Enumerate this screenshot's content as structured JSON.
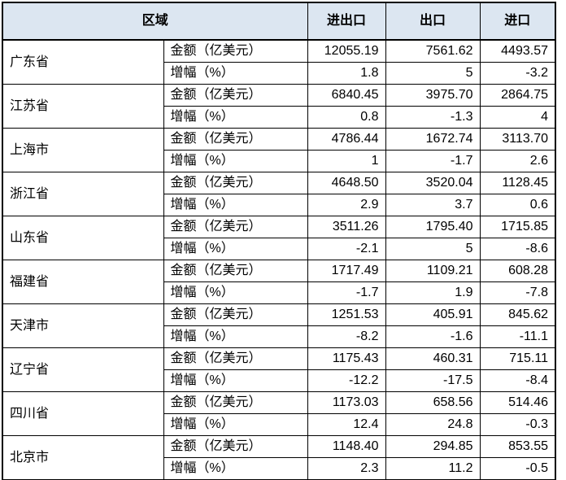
{
  "chart_data": {
    "type": "table",
    "header": {
      "region": "区域",
      "import_export": "进出口",
      "export": "出口",
      "import": "进口"
    },
    "metric_labels": {
      "amount": "金额（亿美元）",
      "growth": "增幅（%）"
    },
    "rows": [
      {
        "province": "广东省",
        "amount": [
          "12055.19",
          "7561.62",
          "4493.57"
        ],
        "growth": [
          "1.8",
          "5",
          "-3.2"
        ]
      },
      {
        "province": "江苏省",
        "amount": [
          "6840.45",
          "3975.70",
          "2864.75"
        ],
        "growth": [
          "0.8",
          "-1.3",
          "4"
        ]
      },
      {
        "province": "上海市",
        "amount": [
          "4786.44",
          "1672.74",
          "3113.70"
        ],
        "growth": [
          "1",
          "-1.7",
          "2.6"
        ]
      },
      {
        "province": "浙江省",
        "amount": [
          "4648.50",
          "3520.04",
          "1128.45"
        ],
        "growth": [
          "2.9",
          "3.7",
          "0.6"
        ]
      },
      {
        "province": "山东省",
        "amount": [
          "3511.26",
          "1795.40",
          "1715.85"
        ],
        "growth": [
          "-2.1",
          "5",
          "-8.6"
        ]
      },
      {
        "province": "福建省",
        "amount": [
          "1717.49",
          "1109.21",
          "608.28"
        ],
        "growth": [
          "-1.7",
          "1.9",
          "-7.8"
        ]
      },
      {
        "province": "天津市",
        "amount": [
          "1251.53",
          "405.91",
          "845.62"
        ],
        "growth": [
          "-8.2",
          "-1.6",
          "-11.1"
        ]
      },
      {
        "province": "辽宁省",
        "amount": [
          "1175.43",
          "460.31",
          "715.11"
        ],
        "growth": [
          "-12.2",
          "-17.5",
          "-8.4"
        ]
      },
      {
        "province": "四川省",
        "amount": [
          "1173.03",
          "658.56",
          "514.46"
        ],
        "growth": [
          "12.4",
          "24.8",
          "-0.3"
        ]
      },
      {
        "province": "北京市",
        "amount": [
          "1148.40",
          "294.85",
          "853.55"
        ],
        "growth": [
          "2.3",
          "11.2",
          "-0.5"
        ]
      }
    ]
  },
  "colors": {
    "header_bg": "#dce6f1",
    "border": "#000000",
    "text": "#000000",
    "body_bg": "#ffffff"
  }
}
